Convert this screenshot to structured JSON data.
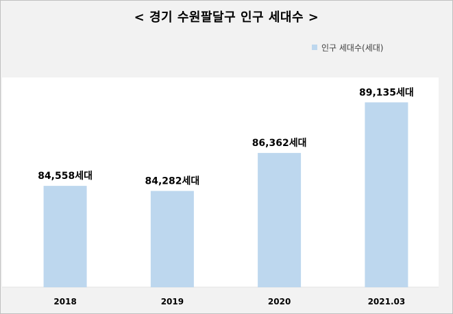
{
  "chart_data": {
    "type": "bar",
    "title": "< 경기 수원팔달구 인구 세대수 >",
    "legend_position": "top-right",
    "grid": false,
    "categories": [
      "2018",
      "2019",
      "2020",
      "2021.03"
    ],
    "series": [
      {
        "name": "인구 세대수(세대)",
        "values": [
          84558,
          84282,
          86362,
          89135
        ],
        "color": "#bdd7ee"
      }
    ],
    "data_labels": [
      "84,558세대",
      "84,282세대",
      "86,362세대",
      "89,135세대"
    ],
    "ylim": [
      79000,
      90500
    ]
  }
}
